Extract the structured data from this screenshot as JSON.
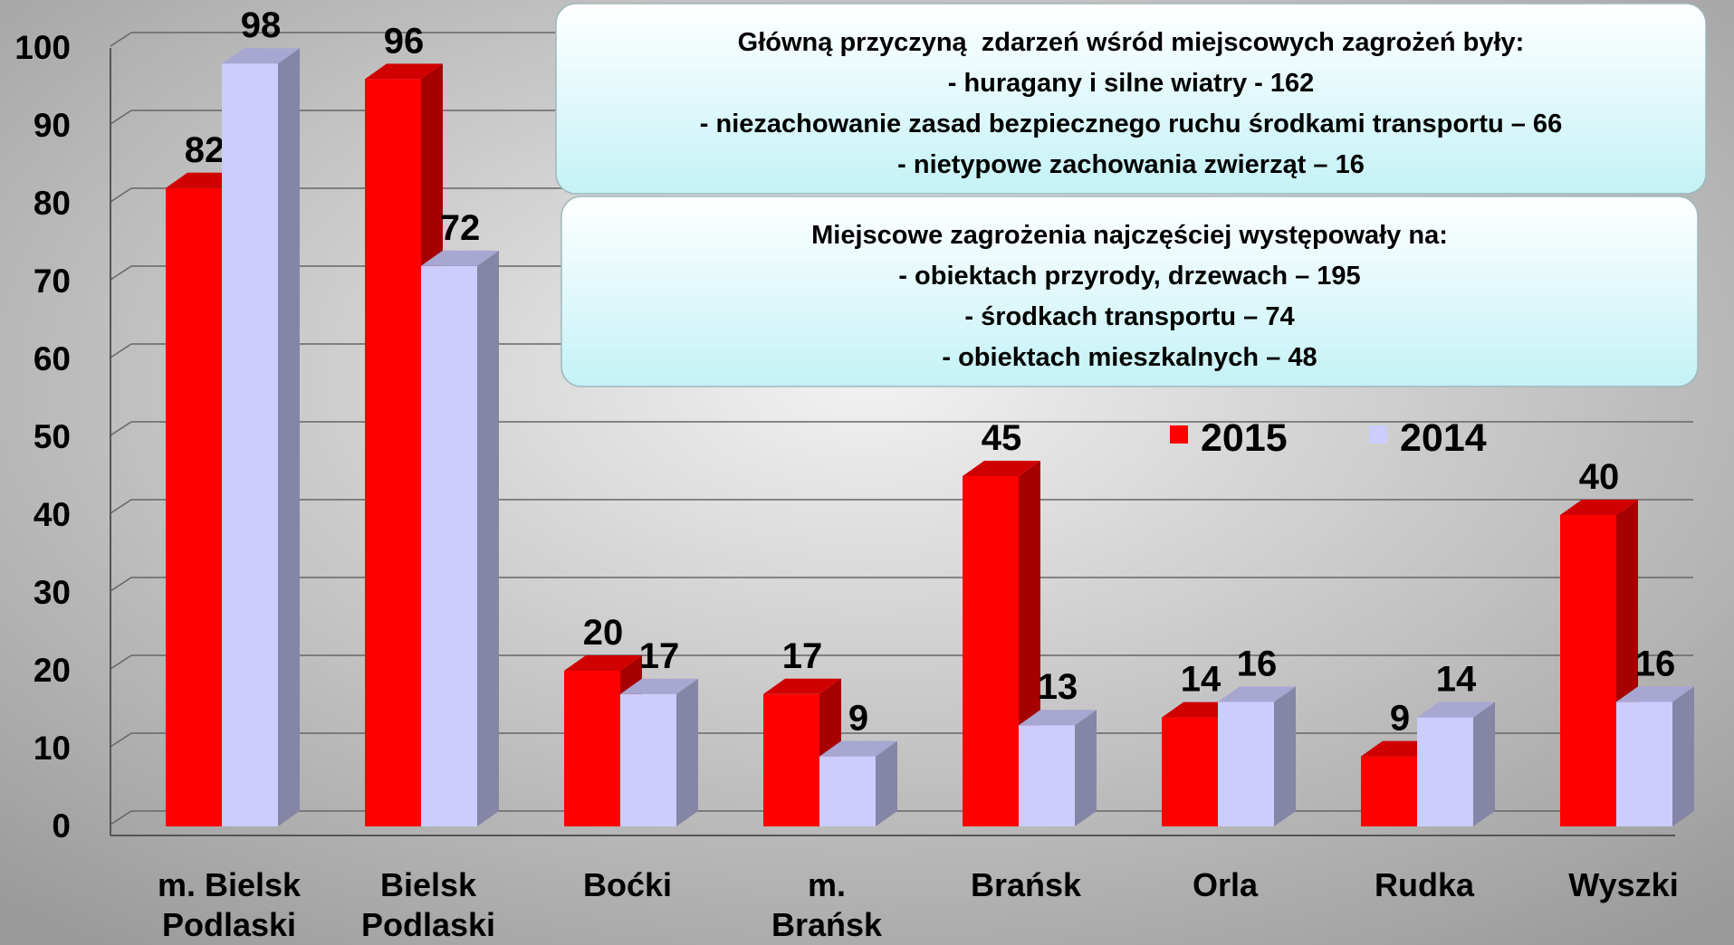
{
  "chart_data": {
    "type": "bar3d",
    "categories": [
      "m. Bielsk\nPodlaski",
      "Bielsk\nPodlaski",
      "Boćki",
      "m.\nBrańsk",
      "Brańsk",
      "Orla",
      "Rudka",
      "Wyszki"
    ],
    "series": [
      {
        "name": "2015",
        "color": "#ff0000",
        "values": [
          82,
          96,
          20,
          17,
          45,
          14,
          9,
          40
        ]
      },
      {
        "name": "2014",
        "color": "#ccccff",
        "values": [
          98,
          72,
          17,
          9,
          13,
          16,
          14,
          16
        ]
      }
    ],
    "ylim": [
      0,
      100
    ],
    "yticks": [
      0,
      10,
      20,
      30,
      40,
      50,
      60,
      70,
      80,
      90,
      100
    ],
    "grid": true,
    "annotations": [
      [
        "Główną przyczyną  zdarzeń wśród miejscowych zagrożeń były:",
        "- huragany i silne wiatry - 162",
        "- niezachowanie zasad bezpiecznego ruchu środkami transportu – 66",
        "- nietypowe zachowania zwierząt – 16"
      ],
      [
        "Miejscowe zagrożenia najczęściej występowały na:",
        "- obiektach przyrody, drzewach – 195",
        "- środkach transportu – 74",
        "- obiektach mieszkalnych – 48"
      ]
    ]
  }
}
